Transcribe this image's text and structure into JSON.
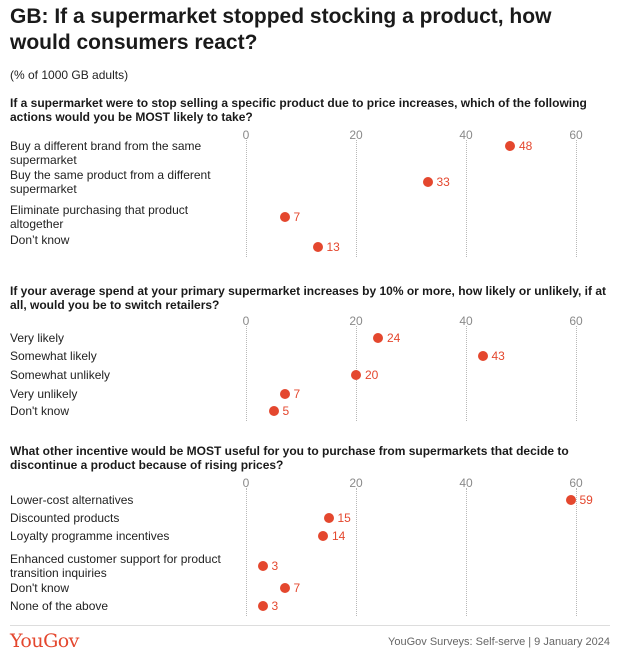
{
  "chart_data": {
    "type": "scatter",
    "title": "GB: If a supermarket stopped stocking a product, how would consumers react?",
    "subtitle": "(% of 1000 GB adults)",
    "xlim": [
      0,
      60
    ],
    "ticks": [
      "0",
      "20",
      "40",
      "60"
    ],
    "tick_values": [
      0,
      20,
      40,
      60
    ],
    "panels": [
      {
        "question": "If a supermarket were to stop selling a specific product due to price increases, which of the following actions would you be MOST likely to take?",
        "categories": [
          "Buy a different brand from the same supermarket",
          "Buy the same product from a different supermarket",
          "Eliminate purchasing that product altogether",
          "Don’t know"
        ],
        "values": [
          48,
          33,
          7,
          13
        ]
      },
      {
        "question": "If your average spend at your primary supermarket increases by 10% or more, how likely or unlikely, if at all, would you be to switch retailers?",
        "categories": [
          "Very likely",
          "Somewhat likely",
          "Somewhat unlikely",
          "Very unlikely",
          "Don't know"
        ],
        "values": [
          24,
          43,
          20,
          7,
          5
        ]
      },
      {
        "question": "What other incentive would be MOST useful for you to purchase from supermarkets that decide to discontinue a product because of rising prices?",
        "categories": [
          "Lower-cost alternatives",
          "Discounted products",
          "Loyalty programme incentives",
          "Enhanced customer support for product transition inquiries",
          "Don't know",
          "None of the above"
        ],
        "values": [
          59,
          15,
          14,
          3,
          7,
          3
        ]
      }
    ],
    "color": "#e4472e"
  },
  "footer": {
    "logo": "YouGov",
    "source": "YouGov Surveys: Self-serve | 9 January 2024"
  }
}
